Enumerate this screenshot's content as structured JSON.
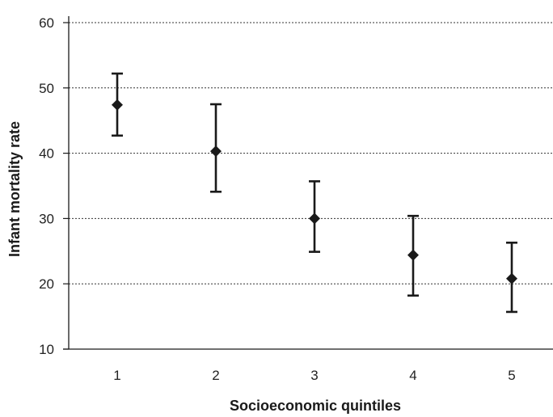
{
  "chart_data": {
    "type": "scatter",
    "title": "",
    "xlabel": "Socioeconomic quintiles",
    "ylabel": "Infant mortality rate",
    "categories": [
      "1",
      "2",
      "3",
      "4",
      "5"
    ],
    "ylim": [
      10,
      60
    ],
    "yticks": [
      "10",
      "20",
      "30",
      "40",
      "50",
      "60"
    ],
    "grid": "horizontal-dotted",
    "legend": "none",
    "marker": "diamond",
    "color": "#1a1a1a",
    "series": [
      {
        "values": [
          47.4,
          40.3,
          30.0,
          24.4,
          20.8
        ],
        "lower": [
          42.7,
          34.1,
          24.9,
          18.2,
          15.7
        ],
        "upper": [
          52.2,
          47.5,
          35.7,
          30.4,
          26.3
        ]
      }
    ]
  }
}
